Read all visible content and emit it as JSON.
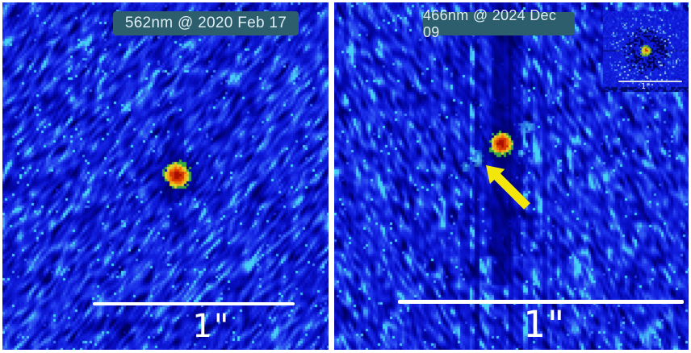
{
  "panels": {
    "left": {
      "label": "562nm @ 2020 Feb 17",
      "scale_bar_label": "1\""
    },
    "right": {
      "label": "466nm @ 2024 Dec 09",
      "scale_bar_label": "1\"",
      "inset": {
        "scale_bar_label": "1\""
      }
    }
  },
  "annotations": {
    "companion_arrow": "arrow pointing up-left at faint companion"
  },
  "colors": {
    "chip_background": "#2d5e6e",
    "chip_text": "#dfeef3",
    "scale_bar": "#ffffff",
    "arrow_yellow": "#f2e60b",
    "background_base": "#101cdc",
    "background_dark": "#000060",
    "background_light": "#3a6ef2",
    "speckle_cyan": "#46d0f6",
    "psf_core_red": "#a80f00",
    "psf_orange": "#ee7009",
    "psf_yellow": "#dcd92a",
    "psf_green": "#3aa844",
    "divider": "#ffffff"
  }
}
